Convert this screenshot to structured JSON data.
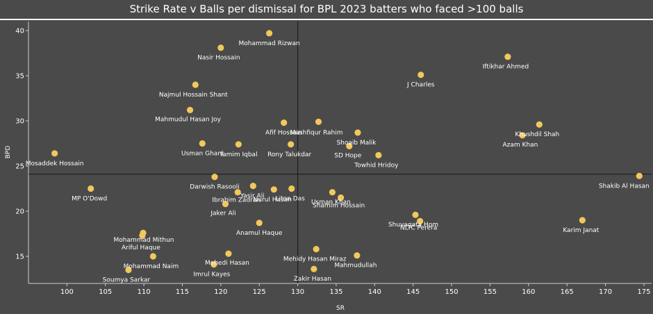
{
  "chart_data": {
    "type": "scatter",
    "title": "Strike Rate v Balls per dismissal for BPL 2023 batters who faced >100 balls",
    "xlabel": "SR",
    "ylabel": "BPD",
    "xlim": [
      95,
      176
    ],
    "ylim": [
      12,
      41
    ],
    "xticks": [
      100,
      105,
      110,
      115,
      120,
      125,
      130,
      135,
      140,
      145,
      150,
      155,
      160,
      165,
      170,
      175
    ],
    "yticks": [
      15,
      20,
      25,
      30,
      35,
      40
    ],
    "reference_lines": {
      "x": 130,
      "y": 24.1
    },
    "point_color": "#f2c75c",
    "grid": false,
    "points": [
      {
        "name": "Mohammad Rizwan",
        "x": 126.3,
        "y": 39.7
      },
      {
        "name": "Nasir Hossain",
        "x": 120.0,
        "y": 38.1
      },
      {
        "name": "Iftikhar Ahmed",
        "x": 157.3,
        "y": 37.1
      },
      {
        "name": "J Charles",
        "x": 146.0,
        "y": 35.1
      },
      {
        "name": "Najmul Hossain Shant",
        "x": 116.7,
        "y": 34.0
      },
      {
        "name": "Mahmudul Hasan Joy",
        "x": 116.0,
        "y": 31.2
      },
      {
        "name": "Afif Hossain",
        "x": 128.2,
        "y": 29.8
      },
      {
        "name": "Mushfiqur Rahim",
        "x": 132.7,
        "y": 29.9
      },
      {
        "name": "Shoaib Malik",
        "x": 137.8,
        "y": 28.7
      },
      {
        "name": "Khushdil Shah",
        "x": 161.4,
        "y": 29.6
      },
      {
        "name": "Azam Khan",
        "x": 159.2,
        "y": 28.4
      },
      {
        "name": "Usman Ghani",
        "x": 117.6,
        "y": 27.5
      },
      {
        "name": "Tamim Iqbal",
        "x": 122.3,
        "y": 27.4
      },
      {
        "name": "Rony Talukdar",
        "x": 129.1,
        "y": 27.4
      },
      {
        "name": "SD Hope",
        "x": 136.7,
        "y": 27.2
      },
      {
        "name": "Towhid Hridoy",
        "x": 140.5,
        "y": 26.2
      },
      {
        "name": "Mosaddek Hossain",
        "x": 98.4,
        "y": 26.4
      },
      {
        "name": "Shakib Al Hasan",
        "x": 174.4,
        "y": 23.9
      },
      {
        "name": "Darwish Rasooli",
        "x": 119.2,
        "y": 23.8
      },
      {
        "name": "MP O'Dowd",
        "x": 103.1,
        "y": 22.5
      },
      {
        "name": "Yasir Ali",
        "x": 124.2,
        "y": 22.8
      },
      {
        "name": "Nurul Hasan",
        "x": 126.9,
        "y": 22.4
      },
      {
        "name": "Liton Das",
        "x": 129.2,
        "y": 22.5
      },
      {
        "name": "Ibrahim Zadran",
        "x": 122.2,
        "y": 22.1
      },
      {
        "name": "Usman Khan",
        "x": 134.5,
        "y": 22.1
      },
      {
        "name": "Shamim Hossain",
        "x": 135.6,
        "y": 21.5
      },
      {
        "name": "Jaker Ali",
        "x": 120.6,
        "y": 20.8
      },
      {
        "name": "Shuvagata Hom",
        "x": 145.3,
        "y": 19.6
      },
      {
        "name": "NLTC Perera",
        "x": 145.9,
        "y": 18.9
      },
      {
        "name": "Karim Janat",
        "x": 167.0,
        "y": 19.0
      },
      {
        "name": "Anamul Haque",
        "x": 125.0,
        "y": 18.7
      },
      {
        "name": "Mohammad Mithun",
        "x": 109.9,
        "y": 17.6
      },
      {
        "name": "Ariful Haque",
        "x": 109.8,
        "y": 17.3
      },
      {
        "name": "Mehidy Hasan Miraz",
        "x": 132.4,
        "y": 15.8
      },
      {
        "name": "Mahmudullah",
        "x": 137.7,
        "y": 15.1
      },
      {
        "name": "Mohammad Naim",
        "x": 111.2,
        "y": 15.0
      },
      {
        "name": "Mehedi Hasan",
        "x": 121.0,
        "y": 15.3
      },
      {
        "name": "Imrul Kayes",
        "x": 119.1,
        "y": 14.1
      },
      {
        "name": "Soumya Sarkar",
        "x": 108.0,
        "y": 13.5
      },
      {
        "name": "Zakir Hasan",
        "x": 132.1,
        "y": 13.6
      }
    ]
  }
}
